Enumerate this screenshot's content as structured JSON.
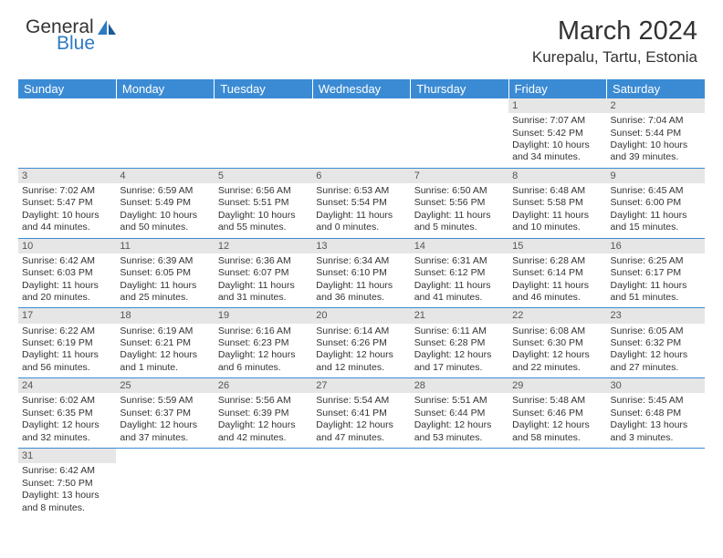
{
  "logo": {
    "general": "General",
    "blue": "Blue"
  },
  "title": "March 2024",
  "location": "Kurepalu, Tartu, Estonia",
  "headerColor": "#3b8bd4",
  "dayHeaders": [
    "Sunday",
    "Monday",
    "Tuesday",
    "Wednesday",
    "Thursday",
    "Friday",
    "Saturday"
  ],
  "weeks": [
    [
      null,
      null,
      null,
      null,
      null,
      {
        "n": "1",
        "sr": "Sunrise: 7:07 AM",
        "ss": "Sunset: 5:42 PM",
        "d1": "Daylight: 10 hours",
        "d2": "and 34 minutes."
      },
      {
        "n": "2",
        "sr": "Sunrise: 7:04 AM",
        "ss": "Sunset: 5:44 PM",
        "d1": "Daylight: 10 hours",
        "d2": "and 39 minutes."
      }
    ],
    [
      {
        "n": "3",
        "sr": "Sunrise: 7:02 AM",
        "ss": "Sunset: 5:47 PM",
        "d1": "Daylight: 10 hours",
        "d2": "and 44 minutes."
      },
      {
        "n": "4",
        "sr": "Sunrise: 6:59 AM",
        "ss": "Sunset: 5:49 PM",
        "d1": "Daylight: 10 hours",
        "d2": "and 50 minutes."
      },
      {
        "n": "5",
        "sr": "Sunrise: 6:56 AM",
        "ss": "Sunset: 5:51 PM",
        "d1": "Daylight: 10 hours",
        "d2": "and 55 minutes."
      },
      {
        "n": "6",
        "sr": "Sunrise: 6:53 AM",
        "ss": "Sunset: 5:54 PM",
        "d1": "Daylight: 11 hours",
        "d2": "and 0 minutes."
      },
      {
        "n": "7",
        "sr": "Sunrise: 6:50 AM",
        "ss": "Sunset: 5:56 PM",
        "d1": "Daylight: 11 hours",
        "d2": "and 5 minutes."
      },
      {
        "n": "8",
        "sr": "Sunrise: 6:48 AM",
        "ss": "Sunset: 5:58 PM",
        "d1": "Daylight: 11 hours",
        "d2": "and 10 minutes."
      },
      {
        "n": "9",
        "sr": "Sunrise: 6:45 AM",
        "ss": "Sunset: 6:00 PM",
        "d1": "Daylight: 11 hours",
        "d2": "and 15 minutes."
      }
    ],
    [
      {
        "n": "10",
        "sr": "Sunrise: 6:42 AM",
        "ss": "Sunset: 6:03 PM",
        "d1": "Daylight: 11 hours",
        "d2": "and 20 minutes."
      },
      {
        "n": "11",
        "sr": "Sunrise: 6:39 AM",
        "ss": "Sunset: 6:05 PM",
        "d1": "Daylight: 11 hours",
        "d2": "and 25 minutes."
      },
      {
        "n": "12",
        "sr": "Sunrise: 6:36 AM",
        "ss": "Sunset: 6:07 PM",
        "d1": "Daylight: 11 hours",
        "d2": "and 31 minutes."
      },
      {
        "n": "13",
        "sr": "Sunrise: 6:34 AM",
        "ss": "Sunset: 6:10 PM",
        "d1": "Daylight: 11 hours",
        "d2": "and 36 minutes."
      },
      {
        "n": "14",
        "sr": "Sunrise: 6:31 AM",
        "ss": "Sunset: 6:12 PM",
        "d1": "Daylight: 11 hours",
        "d2": "and 41 minutes."
      },
      {
        "n": "15",
        "sr": "Sunrise: 6:28 AM",
        "ss": "Sunset: 6:14 PM",
        "d1": "Daylight: 11 hours",
        "d2": "and 46 minutes."
      },
      {
        "n": "16",
        "sr": "Sunrise: 6:25 AM",
        "ss": "Sunset: 6:17 PM",
        "d1": "Daylight: 11 hours",
        "d2": "and 51 minutes."
      }
    ],
    [
      {
        "n": "17",
        "sr": "Sunrise: 6:22 AM",
        "ss": "Sunset: 6:19 PM",
        "d1": "Daylight: 11 hours",
        "d2": "and 56 minutes."
      },
      {
        "n": "18",
        "sr": "Sunrise: 6:19 AM",
        "ss": "Sunset: 6:21 PM",
        "d1": "Daylight: 12 hours",
        "d2": "and 1 minute."
      },
      {
        "n": "19",
        "sr": "Sunrise: 6:16 AM",
        "ss": "Sunset: 6:23 PM",
        "d1": "Daylight: 12 hours",
        "d2": "and 6 minutes."
      },
      {
        "n": "20",
        "sr": "Sunrise: 6:14 AM",
        "ss": "Sunset: 6:26 PM",
        "d1": "Daylight: 12 hours",
        "d2": "and 12 minutes."
      },
      {
        "n": "21",
        "sr": "Sunrise: 6:11 AM",
        "ss": "Sunset: 6:28 PM",
        "d1": "Daylight: 12 hours",
        "d2": "and 17 minutes."
      },
      {
        "n": "22",
        "sr": "Sunrise: 6:08 AM",
        "ss": "Sunset: 6:30 PM",
        "d1": "Daylight: 12 hours",
        "d2": "and 22 minutes."
      },
      {
        "n": "23",
        "sr": "Sunrise: 6:05 AM",
        "ss": "Sunset: 6:32 PM",
        "d1": "Daylight: 12 hours",
        "d2": "and 27 minutes."
      }
    ],
    [
      {
        "n": "24",
        "sr": "Sunrise: 6:02 AM",
        "ss": "Sunset: 6:35 PM",
        "d1": "Daylight: 12 hours",
        "d2": "and 32 minutes."
      },
      {
        "n": "25",
        "sr": "Sunrise: 5:59 AM",
        "ss": "Sunset: 6:37 PM",
        "d1": "Daylight: 12 hours",
        "d2": "and 37 minutes."
      },
      {
        "n": "26",
        "sr": "Sunrise: 5:56 AM",
        "ss": "Sunset: 6:39 PM",
        "d1": "Daylight: 12 hours",
        "d2": "and 42 minutes."
      },
      {
        "n": "27",
        "sr": "Sunrise: 5:54 AM",
        "ss": "Sunset: 6:41 PM",
        "d1": "Daylight: 12 hours",
        "d2": "and 47 minutes."
      },
      {
        "n": "28",
        "sr": "Sunrise: 5:51 AM",
        "ss": "Sunset: 6:44 PM",
        "d1": "Daylight: 12 hours",
        "d2": "and 53 minutes."
      },
      {
        "n": "29",
        "sr": "Sunrise: 5:48 AM",
        "ss": "Sunset: 6:46 PM",
        "d1": "Daylight: 12 hours",
        "d2": "and 58 minutes."
      },
      {
        "n": "30",
        "sr": "Sunrise: 5:45 AM",
        "ss": "Sunset: 6:48 PM",
        "d1": "Daylight: 13 hours",
        "d2": "and 3 minutes."
      }
    ],
    [
      {
        "n": "31",
        "sr": "Sunrise: 6:42 AM",
        "ss": "Sunset: 7:50 PM",
        "d1": "Daylight: 13 hours",
        "d2": "and 8 minutes."
      },
      null,
      null,
      null,
      null,
      null,
      null
    ]
  ]
}
